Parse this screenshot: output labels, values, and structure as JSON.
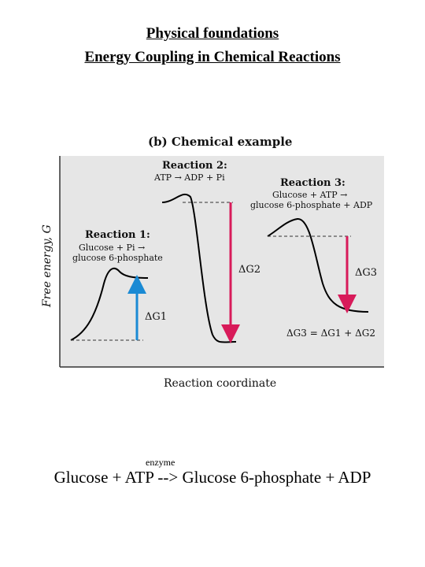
{
  "title_line1": "Physical foundations",
  "title_line2": "Energy Coupling in Chemical Reactions",
  "diagram": {
    "panel_title": "(b) Chemical example",
    "y_axis_label": "Free energy, G",
    "x_axis_label": "Reaction coordinate",
    "reaction1": {
      "name": "Reaction 1:",
      "line1": "Glucose + Pi →",
      "line2": "glucose 6-phosphate"
    },
    "reaction2": {
      "name": "Reaction 2:",
      "line1": "ATP → ADP + Pi"
    },
    "reaction3": {
      "name": "Reaction 3:",
      "line1": "Glucose + ATP →",
      "line2": "glucose 6-phosphate + ADP"
    },
    "dg1": "ΔG1",
    "dg2": "ΔG2",
    "dg3": "ΔG3",
    "dg_sum": "ΔG3 = ΔG1 + ΔG2",
    "colors": {
      "panel_bg": "#e6e6e6",
      "dg1_arrow": "#1a8ad4",
      "dg_arrows": "#d81b5a"
    }
  },
  "equation": {
    "enzyme_label": "enzyme",
    "text": "Glucose + ATP --> Glucose 6-phosphate + ADP"
  }
}
